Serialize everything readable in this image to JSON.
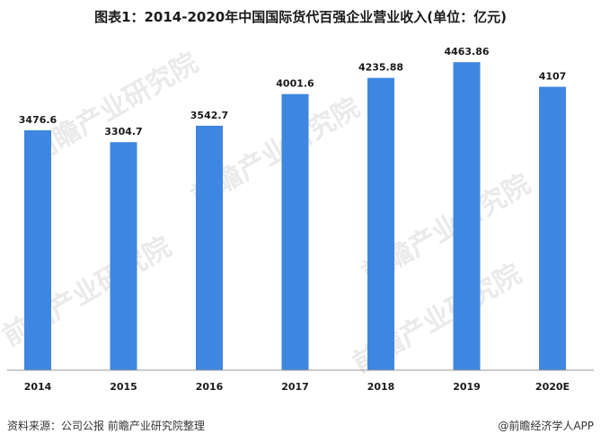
{
  "title": "图表1：2014-2020年中国国际货代百强企业营业收入(单位：亿元)",
  "source": "资料来源：公司公报 前瞻产业研究院整理",
  "brand": "@前瞻经济学人APP",
  "watermark": "前瞻产业研究院",
  "colors": {
    "bar": "#3f86e0"
  },
  "chart_data": {
    "type": "bar",
    "title": "图表1：2014-2020年中国国际货代百强企业营业收入(单位：亿元)",
    "categories": [
      "2014",
      "2015",
      "2016",
      "2017",
      "2018",
      "2019",
      "2020E"
    ],
    "values": [
      3476.6,
      3304.7,
      3542.7,
      4001.6,
      4235.88,
      4463.86,
      4107
    ],
    "value_labels": [
      "3476.6",
      "3304.7",
      "3542.7",
      "4001.6",
      "4235.88",
      "4463.86",
      "4107"
    ],
    "xlabel": "",
    "ylabel": "",
    "ylim": [
      0,
      5000
    ],
    "grid": false,
    "legend": "none"
  }
}
